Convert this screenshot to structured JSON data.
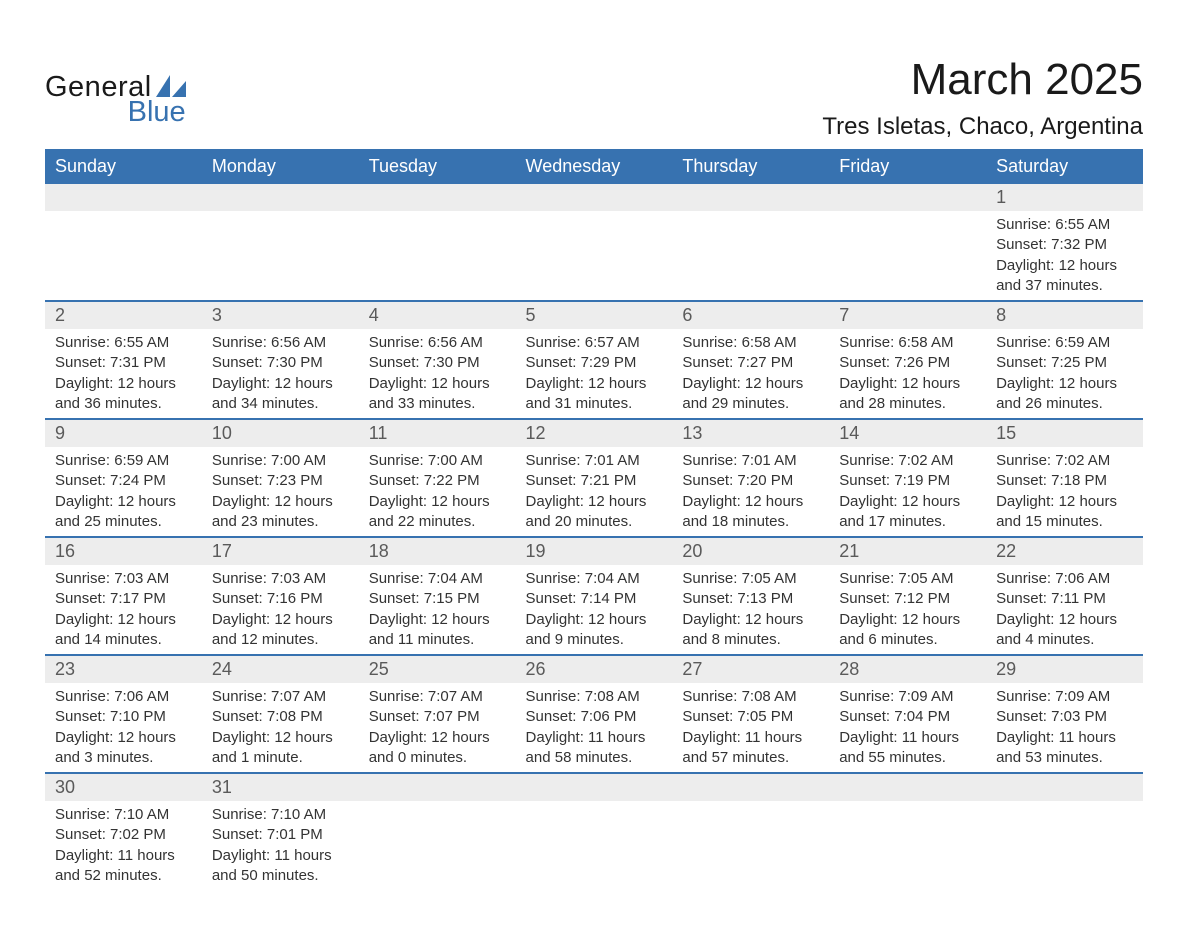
{
  "logo": {
    "text_general": "General",
    "text_blue": "Blue",
    "shape_color": "#3772b0"
  },
  "title": "March 2025",
  "location": "Tres Isletas, Chaco, Argentina",
  "day_headers": [
    "Sunday",
    "Monday",
    "Tuesday",
    "Wednesday",
    "Thursday",
    "Friday",
    "Saturday"
  ],
  "colors": {
    "header_bg": "#3772b0",
    "header_text": "#ffffff",
    "daynum_bg": "#ededed",
    "daynum_text": "#5a5a5a",
    "body_text": "#333333",
    "border": "#3772b0",
    "page_bg": "#ffffff"
  },
  "typography": {
    "title_fontsize": 44,
    "location_fontsize": 24,
    "header_fontsize": 18,
    "daynum_fontsize": 18,
    "data_fontsize": 15,
    "font_family": "Arial"
  },
  "weeks": [
    [
      null,
      null,
      null,
      null,
      null,
      null,
      {
        "num": "1",
        "sunrise": "Sunrise: 6:55 AM",
        "sunset": "Sunset: 7:32 PM",
        "daylight1": "Daylight: 12 hours",
        "daylight2": "and 37 minutes."
      }
    ],
    [
      {
        "num": "2",
        "sunrise": "Sunrise: 6:55 AM",
        "sunset": "Sunset: 7:31 PM",
        "daylight1": "Daylight: 12 hours",
        "daylight2": "and 36 minutes."
      },
      {
        "num": "3",
        "sunrise": "Sunrise: 6:56 AM",
        "sunset": "Sunset: 7:30 PM",
        "daylight1": "Daylight: 12 hours",
        "daylight2": "and 34 minutes."
      },
      {
        "num": "4",
        "sunrise": "Sunrise: 6:56 AM",
        "sunset": "Sunset: 7:30 PM",
        "daylight1": "Daylight: 12 hours",
        "daylight2": "and 33 minutes."
      },
      {
        "num": "5",
        "sunrise": "Sunrise: 6:57 AM",
        "sunset": "Sunset: 7:29 PM",
        "daylight1": "Daylight: 12 hours",
        "daylight2": "and 31 minutes."
      },
      {
        "num": "6",
        "sunrise": "Sunrise: 6:58 AM",
        "sunset": "Sunset: 7:27 PM",
        "daylight1": "Daylight: 12 hours",
        "daylight2": "and 29 minutes."
      },
      {
        "num": "7",
        "sunrise": "Sunrise: 6:58 AM",
        "sunset": "Sunset: 7:26 PM",
        "daylight1": "Daylight: 12 hours",
        "daylight2": "and 28 minutes."
      },
      {
        "num": "8",
        "sunrise": "Sunrise: 6:59 AM",
        "sunset": "Sunset: 7:25 PM",
        "daylight1": "Daylight: 12 hours",
        "daylight2": "and 26 minutes."
      }
    ],
    [
      {
        "num": "9",
        "sunrise": "Sunrise: 6:59 AM",
        "sunset": "Sunset: 7:24 PM",
        "daylight1": "Daylight: 12 hours",
        "daylight2": "and 25 minutes."
      },
      {
        "num": "10",
        "sunrise": "Sunrise: 7:00 AM",
        "sunset": "Sunset: 7:23 PM",
        "daylight1": "Daylight: 12 hours",
        "daylight2": "and 23 minutes."
      },
      {
        "num": "11",
        "sunrise": "Sunrise: 7:00 AM",
        "sunset": "Sunset: 7:22 PM",
        "daylight1": "Daylight: 12 hours",
        "daylight2": "and 22 minutes."
      },
      {
        "num": "12",
        "sunrise": "Sunrise: 7:01 AM",
        "sunset": "Sunset: 7:21 PM",
        "daylight1": "Daylight: 12 hours",
        "daylight2": "and 20 minutes."
      },
      {
        "num": "13",
        "sunrise": "Sunrise: 7:01 AM",
        "sunset": "Sunset: 7:20 PM",
        "daylight1": "Daylight: 12 hours",
        "daylight2": "and 18 minutes."
      },
      {
        "num": "14",
        "sunrise": "Sunrise: 7:02 AM",
        "sunset": "Sunset: 7:19 PM",
        "daylight1": "Daylight: 12 hours",
        "daylight2": "and 17 minutes."
      },
      {
        "num": "15",
        "sunrise": "Sunrise: 7:02 AM",
        "sunset": "Sunset: 7:18 PM",
        "daylight1": "Daylight: 12 hours",
        "daylight2": "and 15 minutes."
      }
    ],
    [
      {
        "num": "16",
        "sunrise": "Sunrise: 7:03 AM",
        "sunset": "Sunset: 7:17 PM",
        "daylight1": "Daylight: 12 hours",
        "daylight2": "and 14 minutes."
      },
      {
        "num": "17",
        "sunrise": "Sunrise: 7:03 AM",
        "sunset": "Sunset: 7:16 PM",
        "daylight1": "Daylight: 12 hours",
        "daylight2": "and 12 minutes."
      },
      {
        "num": "18",
        "sunrise": "Sunrise: 7:04 AM",
        "sunset": "Sunset: 7:15 PM",
        "daylight1": "Daylight: 12 hours",
        "daylight2": "and 11 minutes."
      },
      {
        "num": "19",
        "sunrise": "Sunrise: 7:04 AM",
        "sunset": "Sunset: 7:14 PM",
        "daylight1": "Daylight: 12 hours",
        "daylight2": "and 9 minutes."
      },
      {
        "num": "20",
        "sunrise": "Sunrise: 7:05 AM",
        "sunset": "Sunset: 7:13 PM",
        "daylight1": "Daylight: 12 hours",
        "daylight2": "and 8 minutes."
      },
      {
        "num": "21",
        "sunrise": "Sunrise: 7:05 AM",
        "sunset": "Sunset: 7:12 PM",
        "daylight1": "Daylight: 12 hours",
        "daylight2": "and 6 minutes."
      },
      {
        "num": "22",
        "sunrise": "Sunrise: 7:06 AM",
        "sunset": "Sunset: 7:11 PM",
        "daylight1": "Daylight: 12 hours",
        "daylight2": "and 4 minutes."
      }
    ],
    [
      {
        "num": "23",
        "sunrise": "Sunrise: 7:06 AM",
        "sunset": "Sunset: 7:10 PM",
        "daylight1": "Daylight: 12 hours",
        "daylight2": "and 3 minutes."
      },
      {
        "num": "24",
        "sunrise": "Sunrise: 7:07 AM",
        "sunset": "Sunset: 7:08 PM",
        "daylight1": "Daylight: 12 hours",
        "daylight2": "and 1 minute."
      },
      {
        "num": "25",
        "sunrise": "Sunrise: 7:07 AM",
        "sunset": "Sunset: 7:07 PM",
        "daylight1": "Daylight: 12 hours",
        "daylight2": "and 0 minutes."
      },
      {
        "num": "26",
        "sunrise": "Sunrise: 7:08 AM",
        "sunset": "Sunset: 7:06 PM",
        "daylight1": "Daylight: 11 hours",
        "daylight2": "and 58 minutes."
      },
      {
        "num": "27",
        "sunrise": "Sunrise: 7:08 AM",
        "sunset": "Sunset: 7:05 PM",
        "daylight1": "Daylight: 11 hours",
        "daylight2": "and 57 minutes."
      },
      {
        "num": "28",
        "sunrise": "Sunrise: 7:09 AM",
        "sunset": "Sunset: 7:04 PM",
        "daylight1": "Daylight: 11 hours",
        "daylight2": "and 55 minutes."
      },
      {
        "num": "29",
        "sunrise": "Sunrise: 7:09 AM",
        "sunset": "Sunset: 7:03 PM",
        "daylight1": "Daylight: 11 hours",
        "daylight2": "and 53 minutes."
      }
    ],
    [
      {
        "num": "30",
        "sunrise": "Sunrise: 7:10 AM",
        "sunset": "Sunset: 7:02 PM",
        "daylight1": "Daylight: 11 hours",
        "daylight2": "and 52 minutes."
      },
      {
        "num": "31",
        "sunrise": "Sunrise: 7:10 AM",
        "sunset": "Sunset: 7:01 PM",
        "daylight1": "Daylight: 11 hours",
        "daylight2": "and 50 minutes."
      },
      null,
      null,
      null,
      null,
      null
    ]
  ]
}
